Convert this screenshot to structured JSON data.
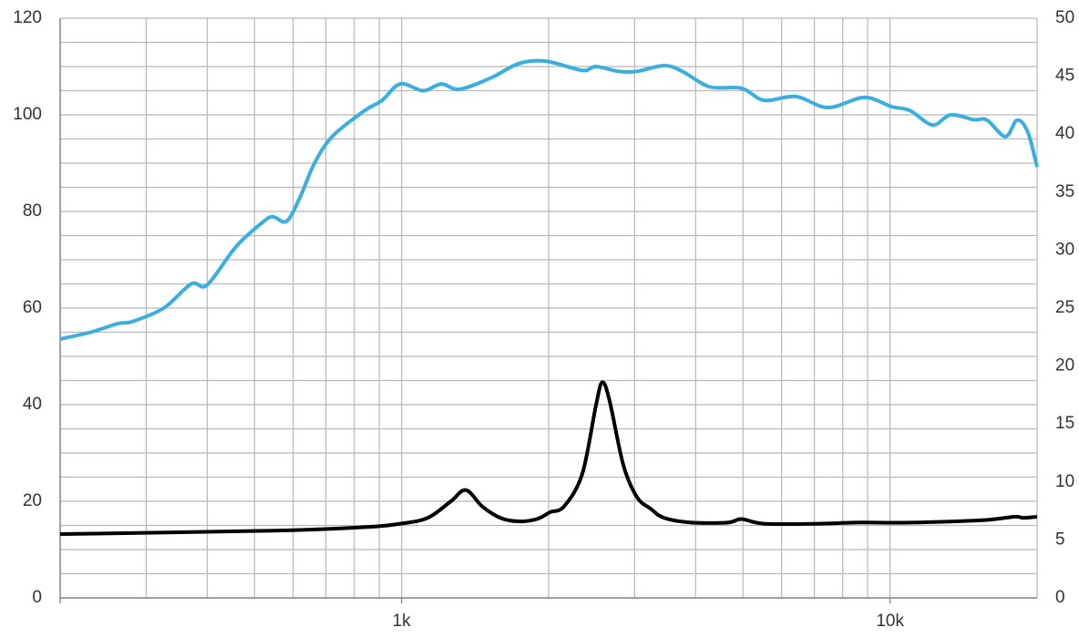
{
  "chart_data": {
    "type": "line",
    "xscale": "log",
    "xlim": [
      200,
      20000
    ],
    "xticks": [
      {
        "value": 1000,
        "label": "1k"
      },
      {
        "value": 10000,
        "label": "10k"
      }
    ],
    "xgrid": [
      200,
      300,
      400,
      500,
      600,
      700,
      800,
      900,
      1000,
      2000,
      3000,
      4000,
      5000,
      6000,
      7000,
      8000,
      9000,
      10000,
      20000
    ],
    "ylim": [
      0,
      120
    ],
    "yticks": [
      0,
      20,
      40,
      60,
      80,
      100,
      120
    ],
    "ygrid": [
      0,
      5,
      10,
      15,
      20,
      25,
      30,
      35,
      40,
      45,
      50,
      55,
      60,
      65,
      70,
      75,
      80,
      85,
      90,
      95,
      100,
      105,
      110,
      115,
      120
    ],
    "y2lim": [
      0,
      50
    ],
    "y2ticks": [
      0,
      5,
      10,
      15,
      20,
      25,
      30,
      35,
      40,
      45,
      50
    ],
    "grid": true,
    "series": [
      {
        "color": "#3aaee0",
        "x": [
          200,
          231,
          263,
          281,
          326,
          371,
          400,
          459,
          523,
          546,
          582,
          620,
          662,
          721,
          838,
          912,
          994,
          1107,
          1206,
          1314,
          1527,
          1737,
          1974,
          2344,
          2500,
          2782,
          3032,
          3449,
          3757,
          4273,
          4964,
          5525,
          6420,
          7460,
          8856,
          10070,
          10980,
          12220,
          13310,
          14820,
          15800,
          17220,
          18200,
          19150,
          20000
        ],
        "values": [
          53.6,
          55,
          56.8,
          57.2,
          60,
          65,
          64.8,
          72.8,
          78,
          78.9,
          78,
          83,
          89.8,
          95.5,
          100.8,
          103,
          106.4,
          105,
          106.4,
          105.3,
          107.7,
          110.6,
          111.1,
          109.2,
          110,
          109,
          109,
          110.2,
          109,
          105.8,
          105.5,
          103,
          103.8,
          101.5,
          103.6,
          101.7,
          100.9,
          97.9,
          100,
          99,
          98.9,
          95.5,
          98.9,
          96.4,
          89.2
        ]
      },
      {
        "color": "#000000",
        "axis": "y2",
        "x": [
          200,
          546,
          838,
          994,
          1131,
          1259,
          1354,
          1462,
          1594,
          1737,
          1892,
          2017,
          2152,
          2344,
          2500,
          2576,
          2666,
          2843,
          3032,
          3234,
          3449,
          3922,
          4654,
          4964,
          5525,
          7148,
          8486,
          10980,
          15460,
          17960,
          18750,
          20000
        ],
        "values": [
          5.5,
          5.8,
          6.1,
          6.4,
          6.9,
          8.3,
          9.3,
          7.9,
          6.9,
          6.6,
          6.8,
          7.4,
          7.9,
          10.7,
          16.6,
          18.6,
          17.0,
          11.5,
          8.7,
          7.7,
          6.9,
          6.5,
          6.5,
          6.8,
          6.4,
          6.4,
          6.5,
          6.5,
          6.7,
          7.0,
          6.9,
          7.0
        ]
      }
    ]
  }
}
